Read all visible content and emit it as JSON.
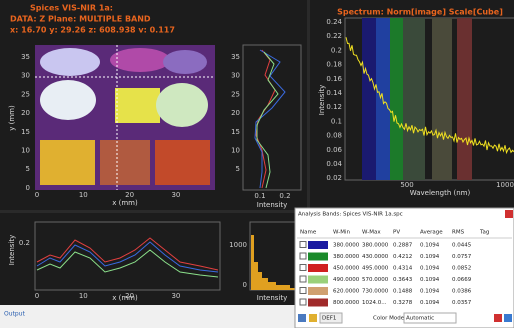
{
  "image_panel": {
    "title": "Spices VIS-NIR 1a:",
    "data_line": "DATA: Z Plane: MULTIPLE BAND",
    "cursor": "x: 16.70  y: 29.26  z: 608.938  v: 0.117",
    "y_label": "y (mm)",
    "x_label": "x (mm)",
    "y_ticks": [
      "35",
      "30",
      "25",
      "20",
      "15",
      "10",
      "5",
      "0"
    ],
    "x_ticks": [
      "0",
      "10",
      "20",
      "30"
    ]
  },
  "profile_right": {
    "y_ticks": [
      "35",
      "30",
      "25",
      "20",
      "15",
      "10",
      "5"
    ],
    "x_ticks": [
      "0.1",
      "0.2"
    ],
    "x_label": "Intensity"
  },
  "spectrum": {
    "title": "Spectrum: Norm[image] Scale[Cube]",
    "y_label": "Intensity",
    "x_label": "Wavelength (nm)",
    "y_ticks": [
      "0.24",
      "0.22",
      "0.2",
      "0.18",
      "0.16",
      "0.14",
      "0.12",
      "0.1",
      "0.08",
      "0.06",
      "0.04",
      "0.02"
    ],
    "x_ticks": [
      "500",
      "1000"
    ]
  },
  "profile_bottom": {
    "y_label": "Intensity",
    "y_ticks": [
      "0.2"
    ],
    "x_ticks": [
      "0",
      "10",
      "20",
      "30"
    ],
    "x_label": "x (mm)"
  },
  "histogram": {
    "y_ticks": [
      "1000",
      "0"
    ],
    "x_label": "Intensity"
  },
  "dialog": {
    "title": "Analysis Bands: Spices VIS-NIR 1a.spc",
    "header": [
      "Name",
      "W-Min",
      "W-Max",
      "PV",
      "Average",
      "RMS",
      "Tag"
    ],
    "rows": [
      [
        "380.0000",
        "380.0000",
        "0.2887",
        "0.1094",
        "0.0445"
      ],
      [
        "380.0000",
        "430.0000",
        "0.4212",
        "0.1094",
        "0.0757"
      ],
      [
        "450.0000",
        "495.0000",
        "0.4314",
        "0.1094",
        "0.0852"
      ],
      [
        "490.0000",
        "570.0000",
        "0.3643",
        "0.1094",
        "0.0669"
      ],
      [
        "620.0000",
        "730.0000",
        "0.1488",
        "0.1094",
        "0.0386"
      ],
      [
        "800.0000",
        "1024.0...",
        "0.3278",
        "0.1094",
        "0.0357"
      ]
    ],
    "preset": "DEF1",
    "color_mode_label": "Color Mode",
    "color_mode": "Automatic"
  },
  "status": {
    "output": "Output"
  }
}
